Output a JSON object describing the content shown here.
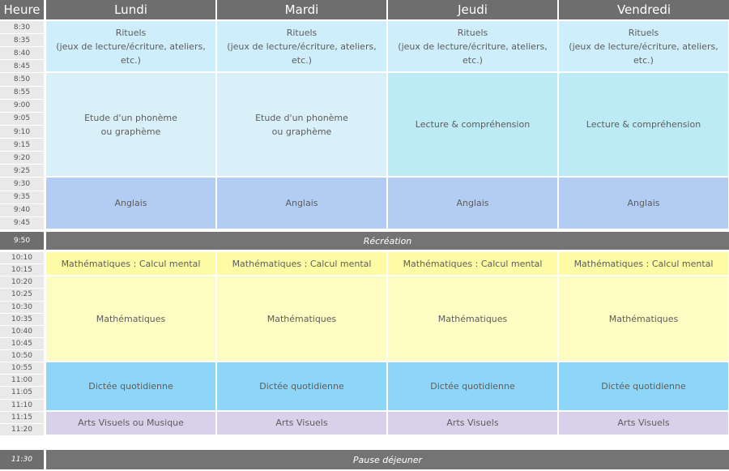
{
  "header": {
    "time_label": "Heure",
    "days": [
      "Lundi",
      "Mardi",
      "Jeudi",
      "Vendredi"
    ]
  },
  "times": {
    "morning_1": [
      "8:30",
      "8:35",
      "8:40",
      "8:45",
      "8:50",
      "8:55",
      "9:00",
      "9:05",
      "9:10",
      "9:15",
      "9:20",
      "9:25",
      "9:30",
      "9:35",
      "9:40",
      "9:45"
    ],
    "recess": "9:50",
    "morning_2": [
      "10:10",
      "10:15",
      "10:20",
      "10:25",
      "10:30",
      "10:35",
      "10:40",
      "10:45",
      "10:50",
      "10:55",
      "11:00",
      "11:05",
      "11:10",
      "11:15",
      "11:20"
    ],
    "lunch": "11:30"
  },
  "bands": {
    "recess_label": "Récréation",
    "lunch_label": "Pause déjeuner"
  },
  "schedule": [
    {
      "key": "rituels",
      "cells": [
        {
          "text": "Rituels\n(jeux de lecture/écriture, ateliers, etc.)",
          "color": "#cfeefb"
        },
        {
          "text": "Rituels\n(jeux de lecture/écriture, ateliers, etc.)",
          "color": "#cfeefb"
        },
        {
          "text": "Rituels\n(jeux de lecture/écriture, ateliers, etc.)",
          "color": "#cfeefb"
        },
        {
          "text": "Rituels\n(jeux de lecture/écriture, ateliers, etc.)",
          "color": "#cfeefb"
        }
      ]
    },
    {
      "key": "phoneme",
      "cells": [
        {
          "text": "Etude d'un phonème\nou graphème",
          "color": "#daf0f8"
        },
        {
          "text": "Etude d'un phonème\nou graphème",
          "color": "#daf0f8"
        },
        {
          "text": "Lecture & compréhension",
          "color": "#bdebf5"
        },
        {
          "text": "Lecture & compréhension",
          "color": "#bdebf5"
        }
      ]
    },
    {
      "key": "anglais",
      "cells": [
        {
          "text": "Anglais",
          "color": "#b3cdf2"
        },
        {
          "text": "Anglais",
          "color": "#b3cdf2"
        },
        {
          "text": "Anglais",
          "color": "#b3cdf2"
        },
        {
          "text": "Anglais",
          "color": "#b3cdf2"
        }
      ]
    },
    {
      "key": "calcul",
      "cells": [
        {
          "text": "Mathématiques : Calcul mental",
          "color": "#fdfba3"
        },
        {
          "text": "Mathématiques : Calcul mental",
          "color": "#fdfba3"
        },
        {
          "text": "Mathématiques : Calcul mental",
          "color": "#fdfba3"
        },
        {
          "text": "Mathématiques : Calcul mental",
          "color": "#fdfba3"
        }
      ]
    },
    {
      "key": "maths",
      "cells": [
        {
          "text": "Mathématiques",
          "color": "#fdfdc3"
        },
        {
          "text": "Mathématiques",
          "color": "#fdfdc3"
        },
        {
          "text": "Mathématiques",
          "color": "#fdfdc3"
        },
        {
          "text": "Mathématiques",
          "color": "#fdfdc3"
        }
      ]
    },
    {
      "key": "dictee",
      "cells": [
        {
          "text": "Dictée quotidienne",
          "color": "#8ed6f8"
        },
        {
          "text": "Dictée quotidienne",
          "color": "#8ed6f8"
        },
        {
          "text": "Dictée quotidienne",
          "color": "#8ed6f8"
        },
        {
          "text": "Dictée quotidienne",
          "color": "#8ed6f8"
        }
      ]
    },
    {
      "key": "arts",
      "cells": [
        {
          "text": "Arts Visuels ou Musique",
          "color": "#d9d1ea"
        },
        {
          "text": "Arts Visuels",
          "color": "#d9d1ea"
        },
        {
          "text": "Arts Visuels",
          "color": "#d9d1ea"
        },
        {
          "text": "Arts Visuels",
          "color": "#d9d1ea"
        }
      ]
    }
  ]
}
